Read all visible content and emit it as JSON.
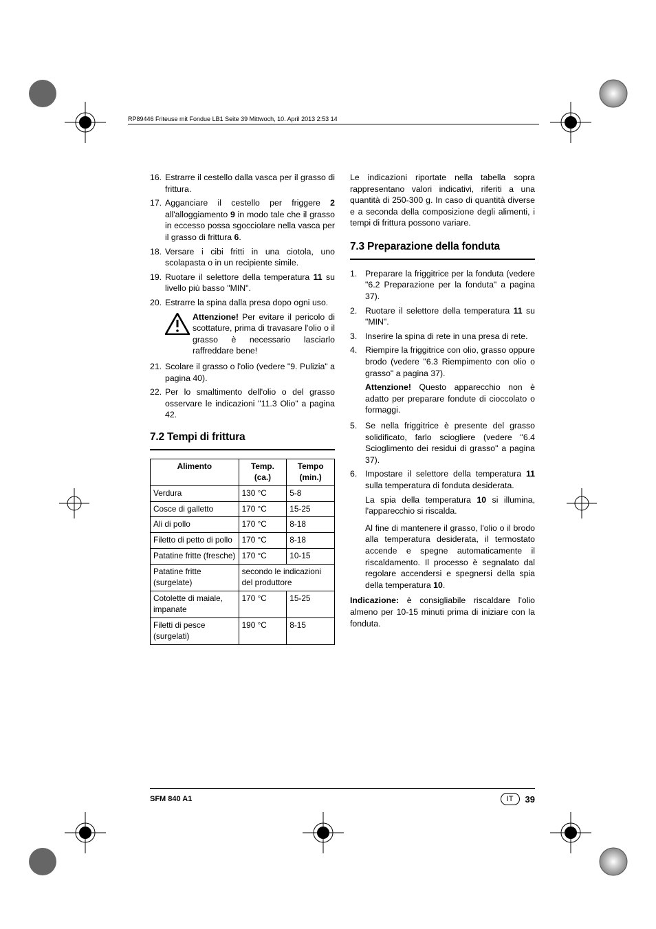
{
  "header": "RP89446 Friteuse mit Fondue LB1  Seite 39  Mittwoch, 10. April 2013  2:53 14",
  "left": {
    "list1": [
      {
        "n": "16.",
        "t": "Estrarre il cestello dalla vasca per il grasso di frittura."
      },
      {
        "n": "17.",
        "t": "Agganciare il cestello per friggere <b>2</b> all'alloggiamento <b>9</b>  in modo tale che il grasso in eccesso possa sgocciolare nella vasca per il grasso di frittura <b>6</b>."
      },
      {
        "n": "18.",
        "t": "Versare i cibi fritti in una ciotola, uno scolapasta o in un recipiente simile."
      },
      {
        "n": "19.",
        "t": "Ruotare il selettore della temperatura <b>11</b> su livello più basso \"MIN\"."
      },
      {
        "n": "20.",
        "t": "Estrarre la spina dalla presa dopo ogni uso."
      }
    ],
    "warn": "<b>Attenzione!</b> Per evitare il pericolo di scottature, prima di travasare l'olio o il grasso è necessario lasciarlo raffreddare bene!",
    "list2": [
      {
        "n": "21.",
        "t": "Scolare il grasso o l'olio (vedere \"9. Pulizia\" a pagina 40)."
      },
      {
        "n": "22.",
        "t": "Per lo smaltimento dell'olio o del grasso osservare le indicazioni \"11.3 Olio\" a pagina 42."
      }
    ],
    "section72": "7.2 Tempi di frittura",
    "table": {
      "headers": [
        "Alimento",
        "Temp. (ca.)",
        "Tempo (min.)"
      ],
      "rows": [
        [
          "Verdura",
          "130 °C",
          "5-8"
        ],
        [
          "Cosce di galletto",
          "170 °C",
          "15-25"
        ],
        [
          "Ali di pollo",
          "170 °C",
          "8-18"
        ],
        [
          "Filetto di petto di pollo",
          "170 °C",
          "8-18"
        ],
        [
          "Patatine fritte (fresche)",
          "170 °C",
          "10-15"
        ],
        [
          "Patatine fritte (surgelate)",
          "secondo le indicazioni del produttore",
          ""
        ],
        [
          "Cotolette di maiale, impanate",
          "170 °C",
          "15-25"
        ],
        [
          "Filetti di pesce (surgelati)",
          "190 °C",
          "8-15"
        ]
      ],
      "merged_row_index": 5
    }
  },
  "right": {
    "intro": "Le indicazioni riportate nella tabella sopra rappresentano valori indicativi, riferiti a una quantità di 250-300 g. In caso di quantità diverse e a seconda della composizione degli alimenti, i tempi di frittura possono variare.",
    "section73": "7.3 Preparazione della fonduta",
    "list": [
      {
        "n": "1.",
        "t": "Preparare la friggitrice per la fonduta (vedere \"6.2 Preparazione per la fonduta\" a pagina 37)."
      },
      {
        "n": "2.",
        "t": "Ruotare il selettore della temperatura <b>11</b> su \"MIN\"."
      },
      {
        "n": "3.",
        "t": "Inserire la spina di rete in una presa di rete."
      },
      {
        "n": "4.",
        "t": "Riempire la friggitrice con olio, grasso oppure brodo (vedere \"6.3 Riempimento con olio o grasso\" a pagina 37)."
      }
    ],
    "warn4": "<b>Attenzione!</b> Questo apparecchio non è adatto per preparare fondute di cioccolato o formaggi.",
    "list2": [
      {
        "n": "5.",
        "t": "Se nella friggitrice è presente del grasso solidificato, farlo sciogliere (vedere \"6.4 Scioglimento dei residui di grasso\" a pagina 37)."
      },
      {
        "n": "6.",
        "t": "Impostare il selettore della temperatura <b>11</b> sulla temperatura di fonduta desiderata."
      }
    ],
    "sub6a": "La spia della temperatura <b>10</b> si illumina, l'apparecchio si riscalda.",
    "sub6b": "Al fine di mantenere il grasso, l'olio o il brodo alla temperatura desiderata, il termostato accende e spegne automaticamente il riscaldamento. Il processo è segnalato dal regolare accendersi e spegnersi della spia della temperatura <b>10</b>.",
    "note": "<b>Indicazione:</b> è consigliabile riscaldare l'olio almeno per 10-15 minuti prima di iniziare con la fonduta."
  },
  "footer": {
    "model": "SFM 840 A1",
    "lang": "IT",
    "page": "39"
  }
}
